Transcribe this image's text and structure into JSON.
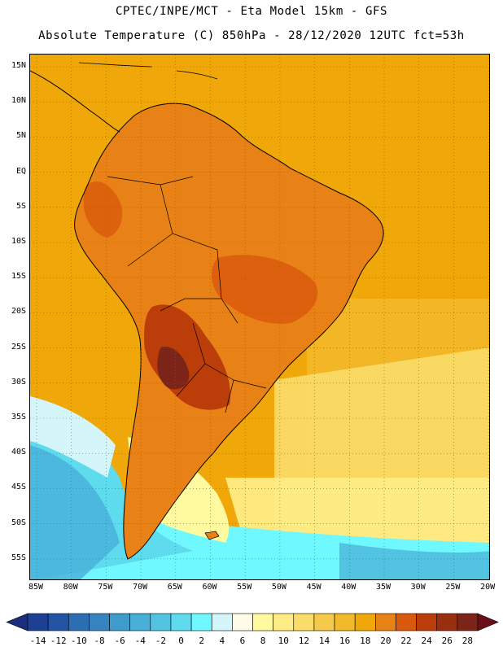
{
  "title": {
    "line1": "CPTEC/INPE/MCT -  Eta Model 15km - GFS",
    "line2": "Absolute Temperature (C) 850hPa - 28/12/2020 12UTC fct=53h"
  },
  "axes": {
    "lat_labels": [
      "15N",
      "10N",
      "5N",
      "EQ",
      "5S",
      "10S",
      "15S",
      "20S",
      "25S",
      "30S",
      "35S",
      "40S",
      "45S",
      "50S",
      "55S"
    ],
    "lon_labels": [
      "85W",
      "80W",
      "75W",
      "70W",
      "65W",
      "60W",
      "55W",
      "50W",
      "45W",
      "40W",
      "35W",
      "30W",
      "25W",
      "20W"
    ]
  },
  "colorbar": {
    "labels": [
      "-14",
      "-12",
      "-10",
      "-8",
      "-6",
      "-4",
      "-2",
      "0",
      "2",
      "4",
      "6",
      "8",
      "10",
      "12",
      "14",
      "16",
      "18",
      "20",
      "22",
      "24",
      "26",
      "28"
    ],
    "colors": [
      "#1d3f94",
      "#2455a4",
      "#2d6db3",
      "#3683bf",
      "#3f9bcc",
      "#48afd8",
      "#52c4e2",
      "#5fdbee",
      "#6ff8ff",
      "#d4f6fb",
      "#fffbe6",
      "#fffaa0",
      "#ffec86",
      "#fadd69",
      "#f4c94c",
      "#f3b92c",
      "#f0a70a",
      "#e98216",
      "#d95a0d",
      "#bb3d0a",
      "#9a2f10",
      "#7d2418"
    ],
    "under_color": "#1a2f80",
    "over_color": "#6a0f1a"
  },
  "palette": {
    "land_warm": "#e98216",
    "land_hot": "#bb3d0a",
    "land_hottest": "#7d2418",
    "ocean_tropical": "#f0a70a",
    "ocean_mid": "#f3b92c",
    "ocean_cool": "#fadd69",
    "cold_band": "#5fdbee",
    "coast": "#000000"
  }
}
